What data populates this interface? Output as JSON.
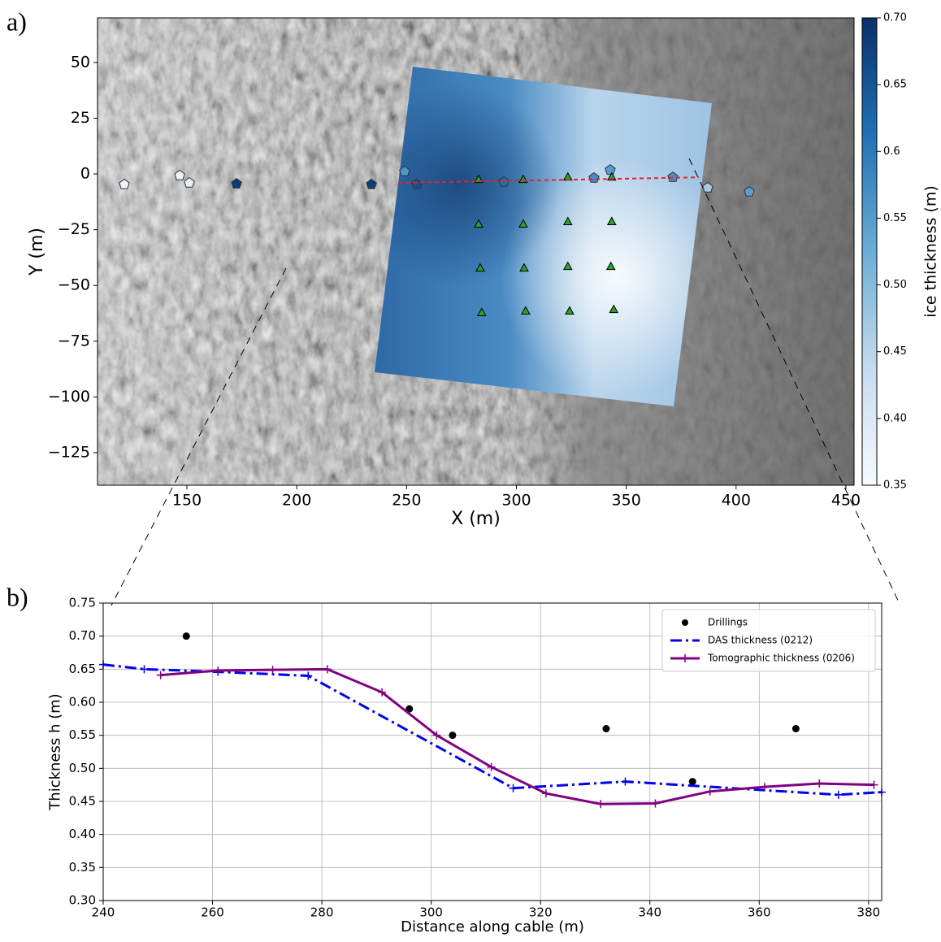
{
  "chart_data": [
    {
      "type": "scatter",
      "panel_label": "a)",
      "xlabel": "X (m)",
      "ylabel": "Y (m)",
      "xlim": [
        109.3,
        453.7
      ],
      "ylim": [
        -139.6,
        70
      ],
      "xticks": [
        150,
        200,
        250,
        300,
        350,
        400,
        450
      ],
      "yticks": [
        50,
        25,
        0,
        {
          "value": -25,
          "label": "−25"
        },
        {
          "value": -50,
          "label": "−50"
        },
        {
          "value": -75,
          "label": "−75"
        },
        {
          "value": -100,
          "label": "−100"
        },
        {
          "value": -125,
          "label": "−125"
        }
      ],
      "series": [
        {
          "marker": "pentagon",
          "x": [
            121.5,
            146.7,
            151.1,
            172.6,
            234.0,
            249.1,
            254.7,
            294.3,
            335.3,
            342.7,
            371.2,
            387.1,
            406.0
          ],
          "values": [
            -4.7,
            -0.7,
            -4.0,
            -4.4,
            -4.7,
            1.1,
            -4.7,
            -3.6,
            -1.8,
            1.8,
            -1.5,
            -6.2,
            -8.0
          ],
          "colors": [
            "#eef4fb",
            "#eef4fb",
            "#e6effa",
            "#0d3c78",
            "#0f3d78",
            "#4f93c9",
            "#1a4f8f",
            "#2f6aa8",
            "#4a8cc6",
            "#5a9bd0",
            "#4b8ac4",
            "#a8cce6",
            "#5d9cd1"
          ]
        },
        {
          "marker": "triangle",
          "color": "#2ca02c",
          "x": [
            282.8,
            303.1,
            323.4,
            343.4,
            282.8,
            303.1,
            323.4,
            343.4,
            283.5,
            303.5,
            323.4,
            343.0,
            284.2,
            304.2,
            324.2,
            344.3
          ],
          "values": [
            -2.6,
            -2.6,
            -1.5,
            -1.5,
            -22.6,
            -22.6,
            -21.5,
            -21.5,
            -42.3,
            -42.3,
            -41.6,
            -41.6,
            -62.3,
            -61.6,
            -61.6,
            -60.9
          ]
        },
        {
          "marker": "line",
          "color": "#e8202a",
          "dash": true,
          "x": [
            246.2,
            383.1
          ],
          "values": [
            -4.0,
            -1.5
          ]
        }
      ],
      "colorbar": {
        "label": "ice thickness (m)",
        "lim": [
          0.35,
          0.7
        ],
        "ticks": [
          0.35,
          {
            "value": 0.4,
            "label": "0.40"
          },
          0.45,
          {
            "value": 0.5,
            "label": "0.50"
          },
          0.55,
          0.6,
          0.65,
          {
            "value": 0.7,
            "label": "0.70"
          }
        ]
      }
    },
    {
      "type": "line",
      "panel_label": "b)",
      "xlabel": "Distance along cable (m)",
      "ylabel": "Thickness h (m)",
      "xlim": [
        240,
        382.4
      ],
      "ylim": [
        0.3,
        0.75
      ],
      "grid": true,
      "legend": "upper right",
      "xticks": [
        240,
        260,
        280,
        300,
        320,
        340,
        360,
        380
      ],
      "yticks": [
        {
          "value": 0.3,
          "label": "0.30"
        },
        0.35,
        {
          "value": 0.4,
          "label": "0.40"
        },
        0.45,
        {
          "value": 0.5,
          "label": "0.50"
        },
        0.55,
        {
          "value": 0.6,
          "label": "0.60"
        },
        0.65,
        {
          "value": 0.7,
          "label": "0.70"
        },
        0.75
      ],
      "series": [
        {
          "name": "Drillings",
          "marker": "dot",
          "color": "#000000",
          "x": [
            255.2,
            296.0,
            303.9,
            332.0,
            347.8,
            366.7
          ],
          "values": [
            0.7,
            0.59,
            0.55,
            0.56,
            0.48,
            0.56
          ]
        },
        {
          "name": "DAS thickness (0212)",
          "marker": "plus",
          "dash": "dashdot",
          "color": "#0000ee",
          "x": [
            240,
            247.5,
            261,
            277.5,
            315,
            335.5,
            374.5,
            382.4
          ],
          "values": [
            0.657,
            0.65,
            0.646,
            0.64,
            0.47,
            0.48,
            0.46,
            0.464
          ]
        },
        {
          "name": "Tomographic thickness (0206)",
          "marker": "plus",
          "color": "#800080",
          "x": [
            250.5,
            261,
            271,
            281,
            291,
            301,
            311,
            321,
            331,
            341,
            351,
            361,
            371,
            381
          ],
          "values": [
            0.641,
            0.648,
            0.649,
            0.65,
            0.615,
            0.55,
            0.502,
            0.462,
            0.446,
            0.447,
            0.465,
            0.472,
            0.477,
            0.475
          ]
        }
      ]
    }
  ]
}
